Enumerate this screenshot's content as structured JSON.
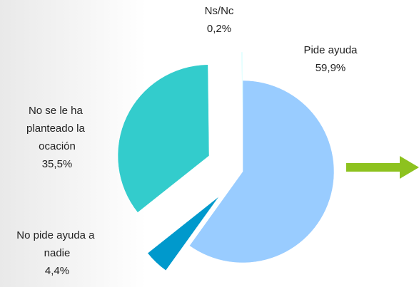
{
  "chart_data": {
    "type": "pie",
    "categories": [
      "Pide ayuda",
      "No pide ayuda a nadie",
      "No se le ha planteado la ocación",
      "Ns/Nc"
    ],
    "values": [
      59.9,
      4.4,
      35.5,
      0.2
    ],
    "value_labels": [
      "59,9%",
      "4,4%",
      "35,5%",
      "0,2%"
    ],
    "colors": [
      "#99ccff",
      "#0099cc",
      "#33cccc",
      "#ccffff"
    ]
  }
}
